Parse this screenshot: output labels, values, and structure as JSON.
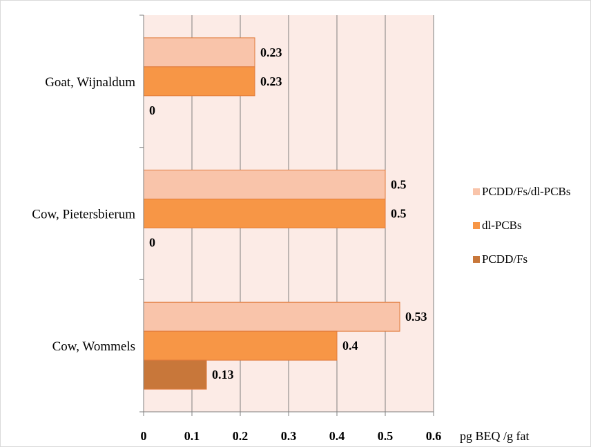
{
  "chart_data": {
    "type": "bar",
    "orientation": "horizontal",
    "categories": [
      "Goat, Wijnaldum",
      "Cow, Pietersbierum",
      "Cow, Wommels"
    ],
    "series": [
      {
        "name": "PCDD/Fs/dl-PCBs",
        "values": [
          0.23,
          0.5,
          0.53
        ],
        "color": "#f9c4aa"
      },
      {
        "name": "dl-PCBs",
        "values": [
          0.23,
          0.5,
          0.4
        ],
        "color": "#f79646"
      },
      {
        "name": "PCDD/Fs",
        "values": [
          0,
          0,
          0.13
        ],
        "color": "#c8773a"
      }
    ],
    "data_labels": [
      [
        "0.23",
        "0.23",
        "0"
      ],
      [
        "0.5",
        "0.5",
        "0"
      ],
      [
        "0.53",
        "0.4",
        "0.13"
      ]
    ],
    "xlabel": "pg BEQ /g fat",
    "ylabel": "",
    "title": "",
    "xlim": [
      0,
      0.6
    ],
    "x_ticks": [
      0,
      0.1,
      0.2,
      0.3,
      0.4,
      0.5,
      0.6
    ],
    "x_tick_labels": [
      "0",
      "0.1",
      "0.2",
      "0.3",
      "0.4",
      "0.5",
      "0.6"
    ],
    "grid": true,
    "legend_position": "right"
  }
}
